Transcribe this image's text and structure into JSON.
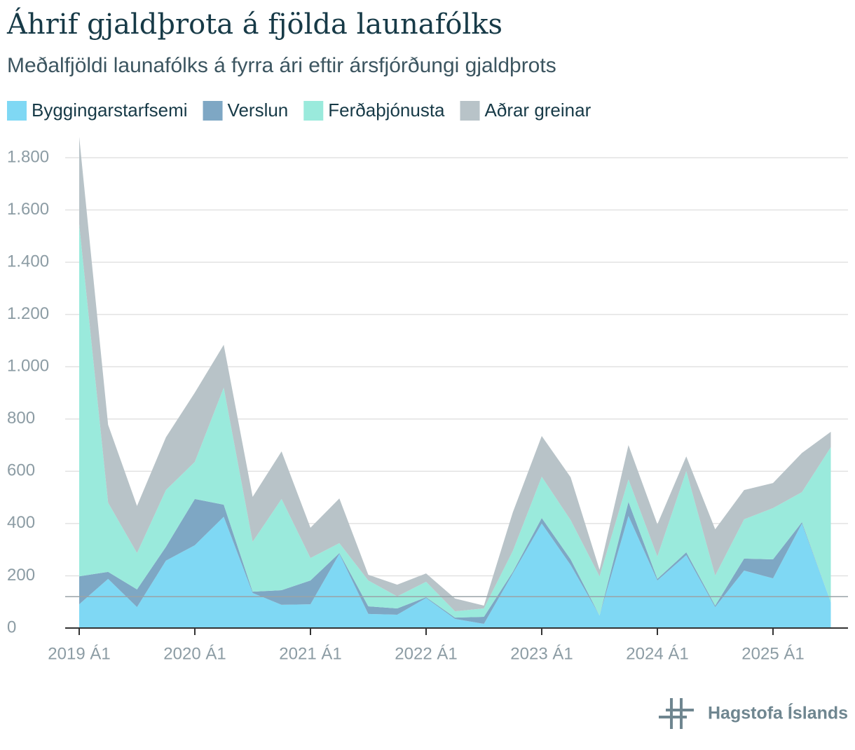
{
  "chart_data": {
    "type": "stacked_area",
    "title": "Áhrif gjaldþrota á fjölda launafólks",
    "subtitle": "Meðalfjöldi launafólks á fyrra ári eftir ársfjórðungi gjaldþrots",
    "source": "Hagstofa Íslands",
    "categories": [
      "2019 Á1",
      null,
      null,
      null,
      "2020 Á1",
      null,
      null,
      null,
      "2021 Á1",
      null,
      null,
      null,
      "2022 Á1",
      null,
      null,
      null,
      "2023 Á1",
      null,
      null,
      null,
      "2024 Á1",
      null,
      null,
      null,
      "2025 Á1",
      null,
      null
    ],
    "series": [
      {
        "name": "Byggingarstarfsemi",
        "color": "#7fd8f4",
        "values": [
          91,
          188,
          80,
          258,
          317,
          426,
          134,
          89,
          91,
          284,
          54,
          51,
          115,
          35,
          16,
          209,
          400,
          241,
          48,
          429,
          182,
          279,
          80,
          220,
          190,
          400,
          99
        ]
      },
      {
        "name": "Verslun",
        "color": "#7ea7c4",
        "values": [
          107,
          27,
          68,
          53,
          177,
          46,
          5,
          56,
          91,
          3,
          29,
          24,
          3,
          5,
          27,
          6,
          21,
          22,
          0,
          54,
          6,
          11,
          6,
          46,
          73,
          5,
          0
        ]
      },
      {
        "name": "Ferðaþjónusta",
        "color": "#9aeadc",
        "values": [
          1347,
          265,
          139,
          217,
          142,
          448,
          191,
          349,
          86,
          38,
          99,
          46,
          59,
          24,
          32,
          80,
          158,
          150,
          150,
          86,
          86,
          311,
          115,
          150,
          196,
          115,
          593
        ]
      },
      {
        "name": "Aðrar greinar",
        "color": "#b8c3c8",
        "values": [
          335,
          298,
          180,
          202,
          265,
          164,
          172,
          182,
          116,
          171,
          22,
          45,
          32,
          49,
          11,
          148,
          156,
          164,
          25,
          131,
          123,
          56,
          177,
          112,
          96,
          150,
          59
        ]
      }
    ],
    "ylim": [
      0,
      1800
    ],
    "yticks": [
      0,
      200,
      400,
      600,
      800,
      {
        "value": 1000,
        "label": "1.000"
      },
      {
        "value": 1200,
        "label": "1.200"
      },
      {
        "value": 1400,
        "label": "1.400"
      },
      {
        "value": 1600,
        "label": "1.600"
      },
      {
        "value": 1800,
        "label": "1.800"
      }
    ],
    "reference_line": 120,
    "grid": true
  }
}
